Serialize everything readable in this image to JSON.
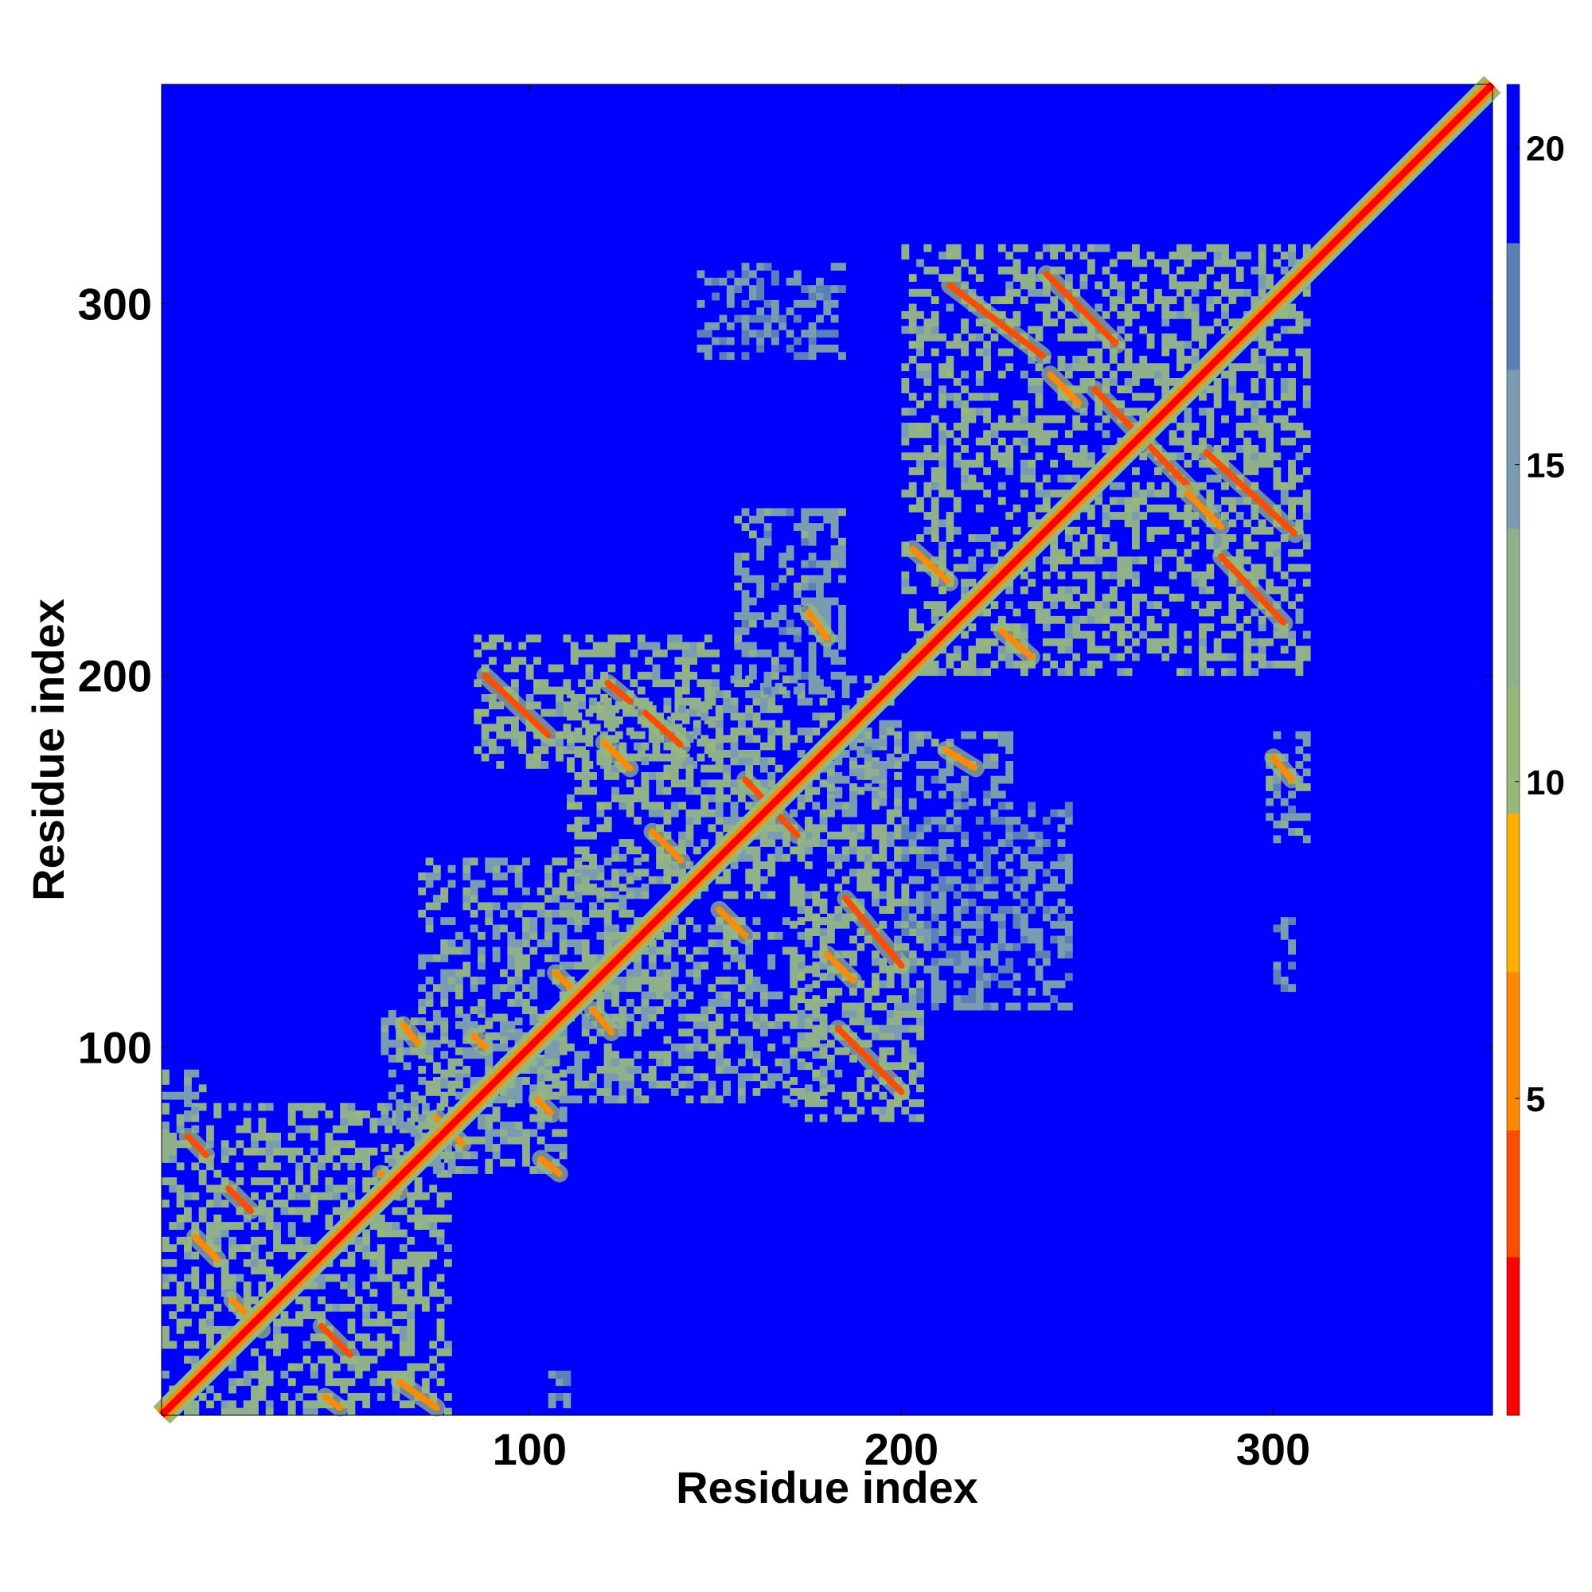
{
  "chart_data": {
    "type": "heatmap",
    "title": "",
    "xlabel": "Residue index",
    "ylabel": "Residue index",
    "xlim": [
      1,
      359
    ],
    "ylim": [
      1,
      359
    ],
    "x_ticks": [
      "100",
      "200",
      "300"
    ],
    "y_ticks": [
      "100",
      "200",
      "300"
    ],
    "x_tick_values": [
      100,
      200,
      300
    ],
    "y_tick_values": [
      100,
      200,
      300
    ],
    "colorbar": {
      "ticks": [
        "5",
        "10",
        "15",
        "20"
      ],
      "tick_values": [
        5,
        10,
        15,
        20
      ],
      "range": [
        0,
        21
      ],
      "cap_value": 21,
      "colors": [
        "#ff0000",
        "#ff4d00",
        "#ff8a00",
        "#ffb000",
        "#98b87a",
        "#8fb08a",
        "#7a9cb0",
        "#5a80b8",
        "#0000ff"
      ]
    },
    "background_color": "#0000ff",
    "diagonal": {
      "from": 1,
      "to": 359,
      "value": 1
    },
    "contact_segments": [
      {
        "x": [
          8,
          13
        ],
        "y": [
          76,
          71
        ],
        "value": 4
      },
      {
        "x": [
          19,
          25
        ],
        "y": [
          62,
          56
        ],
        "value": 4
      },
      {
        "x": [
          10,
          16
        ],
        "y": [
          49,
          43
        ],
        "value": 5
      },
      {
        "x": [
          20,
          28
        ],
        "y": [
          32,
          24
        ],
        "value": 5
      },
      {
        "x": [
          44,
          52
        ],
        "y": [
          25,
          17
        ],
        "value": 4
      },
      {
        "x": [
          65,
          75
        ],
        "y": [
          10,
          3
        ],
        "value": 5
      },
      {
        "x": [
          45,
          49
        ],
        "y": [
          6,
          3
        ],
        "value": 6
      },
      {
        "x": [
          60,
          65
        ],
        "y": [
          66,
          61
        ],
        "value": 5
      },
      {
        "x": [
          75,
          82
        ],
        "y": [
          81,
          74
        ],
        "value": 5
      },
      {
        "x": [
          66,
          70
        ],
        "y": [
          106,
          101
        ],
        "value": 6
      },
      {
        "x": [
          85,
          88
        ],
        "y": [
          103,
          100
        ],
        "value": 6
      },
      {
        "x": [
          102,
          106
        ],
        "y": [
          86,
          82
        ],
        "value": 6
      },
      {
        "x": [
          103,
          108
        ],
        "y": [
          70,
          66
        ],
        "value": 6
      },
      {
        "x": [
          88,
          105
        ],
        "y": [
          200,
          184
        ],
        "value": 4
      },
      {
        "x": [
          121,
          127
        ],
        "y": [
          198,
          193
        ],
        "value": 4
      },
      {
        "x": [
          131,
          141
        ],
        "y": [
          190,
          181
        ],
        "value": 4
      },
      {
        "x": [
          120,
          127
        ],
        "y": [
          182,
          175
        ],
        "value": 5
      },
      {
        "x": [
          133,
          141
        ],
        "y": [
          158,
          150
        ],
        "value": 5
      },
      {
        "x": [
          151,
          158
        ],
        "y": [
          137,
          130
        ],
        "value": 5
      },
      {
        "x": [
          158,
          172
        ],
        "y": [
          172,
          157
        ],
        "value": 4
      },
      {
        "x": [
          107,
          113
        ],
        "y": [
          120,
          114
        ],
        "value": 5
      },
      {
        "x": [
          117,
          122
        ],
        "y": [
          110,
          104
        ],
        "value": 5
      },
      {
        "x": [
          185,
          200
        ],
        "y": [
          140,
          122
        ],
        "value": 4
      },
      {
        "x": [
          180,
          187
        ],
        "y": [
          125,
          118
        ],
        "value": 5
      },
      {
        "x": [
          183,
          200
        ],
        "y": [
          105,
          88
        ],
        "value": 4
      },
      {
        "x": [
          175,
          180
        ],
        "y": [
          217,
          210
        ],
        "value": 6
      },
      {
        "x": [
          203,
          213
        ],
        "y": [
          234,
          225
        ],
        "value": 5
      },
      {
        "x": [
          212,
          220
        ],
        "y": [
          180,
          175
        ],
        "value": 6
      },
      {
        "x": [
          227,
          235
        ],
        "y": [
          212,
          205
        ],
        "value": 5
      },
      {
        "x": [
          213,
          238
        ],
        "y": [
          305,
          286
        ],
        "value": 4
      },
      {
        "x": [
          239,
          258
        ],
        "y": [
          308,
          289
        ],
        "value": 4
      },
      {
        "x": [
          240,
          248
        ],
        "y": [
          281,
          273
        ],
        "value": 5
      },
      {
        "x": [
          252,
          278
        ],
        "y": [
          277,
          250
        ],
        "value": 4
      },
      {
        "x": [
          282,
          306
        ],
        "y": [
          260,
          238
        ],
        "value": 4
      },
      {
        "x": [
          277,
          286
        ],
        "y": [
          249,
          240
        ],
        "value": 5
      },
      {
        "x": [
          286,
          303
        ],
        "y": [
          232,
          214
        ],
        "value": 4
      },
      {
        "x": [
          300,
          305
        ],
        "y": [
          178,
          172
        ],
        "value": 6
      }
    ],
    "contact_regions": [
      {
        "x": [
          1,
          78
        ],
        "y": [
          1,
          85
        ],
        "value": 13
      },
      {
        "x": [
          1,
          12
        ],
        "y": [
          78,
          93
        ],
        "value": 14
      },
      {
        "x": [
          60,
          110
        ],
        "y": [
          66,
          110
        ],
        "value": 14
      },
      {
        "x": [
          70,
          130
        ],
        "y": [
          85,
          150
        ],
        "value": 14
      },
      {
        "x": [
          85,
          150
        ],
        "y": [
          175,
          210
        ],
        "value": 13
      },
      {
        "x": [
          110,
          165
        ],
        "y": [
          140,
          195
        ],
        "value": 13
      },
      {
        "x": [
          120,
          180
        ],
        "y": [
          85,
          135
        ],
        "value": 14
      },
      {
        "x": [
          170,
          205
        ],
        "y": [
          80,
          160
        ],
        "value": 13
      },
      {
        "x": [
          150,
          200
        ],
        "y": [
          150,
          200
        ],
        "value": 14
      },
      {
        "x": [
          155,
          185
        ],
        "y": [
          195,
          245
        ],
        "value": 15
      },
      {
        "x": [
          180,
          230
        ],
        "y": [
          165,
          185
        ],
        "value": 15
      },
      {
        "x": [
          200,
          245
        ],
        "y": [
          110,
          165
        ],
        "value": 16
      },
      {
        "x": [
          145,
          185
        ],
        "y": [
          285,
          310
        ],
        "value": 16
      },
      {
        "x": [
          200,
          310
        ],
        "y": [
          200,
          315
        ],
        "value": 13
      },
      {
        "x": [
          298,
          310
        ],
        "y": [
          155,
          185
        ],
        "value": 15
      },
      {
        "x": [
          300,
          306
        ],
        "y": [
          115,
          135
        ],
        "value": 17
      },
      {
        "x": [
          105,
          110
        ],
        "y": [
          1,
          12
        ],
        "value": 17
      }
    ]
  }
}
